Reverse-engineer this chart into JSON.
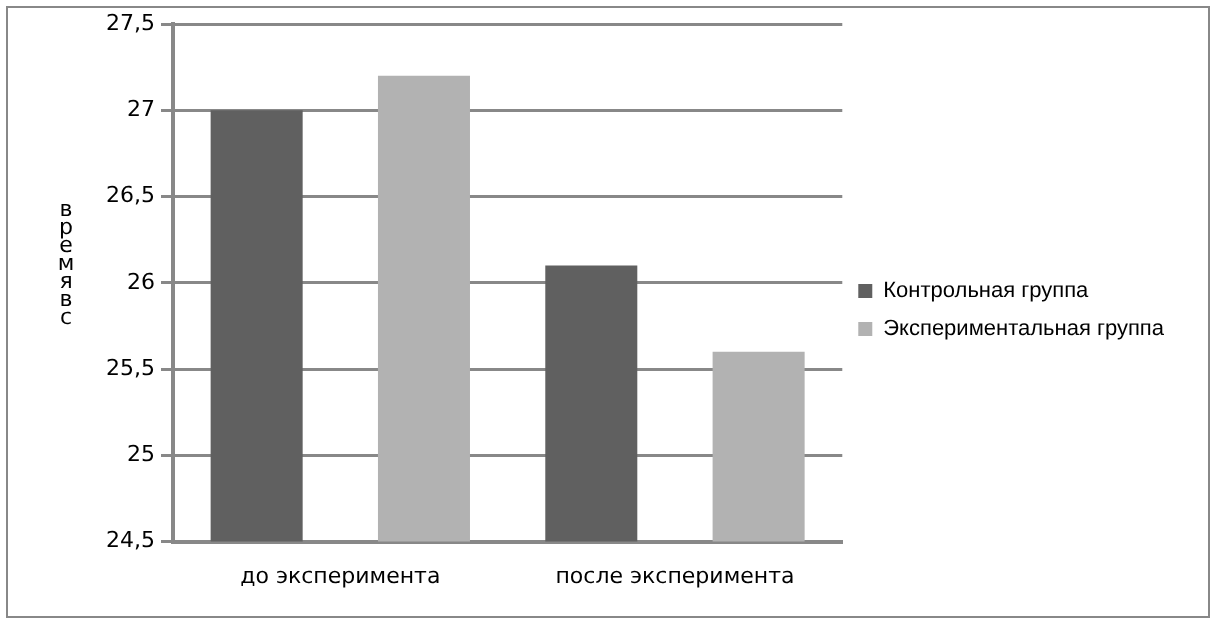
{
  "chart_data": {
    "type": "bar",
    "ylabel": "время в с",
    "categories": [
      "до эксперимента",
      "после эксперимента"
    ],
    "series": [
      {
        "name": "Контрольная группа",
        "color": "#606060",
        "values": [
          27,
          26.1
        ]
      },
      {
        "name": "Экспериментальная группа",
        "color": "#b2b2b2",
        "values": [
          27.2,
          25.6
        ]
      }
    ],
    "ylim": [
      24.5,
      27.5
    ],
    "yticks": [
      {
        "value": 24.5,
        "label": "24,5"
      },
      {
        "value": 25,
        "label": "25"
      },
      {
        "value": 25.5,
        "label": "25,5"
      },
      {
        "value": 26,
        "label": "26"
      },
      {
        "value": 26.5,
        "label": "26,5"
      },
      {
        "value": 27,
        "label": "27"
      },
      {
        "value": 27.5,
        "label": "27,5"
      }
    ],
    "grid": "y",
    "legend": "right"
  }
}
